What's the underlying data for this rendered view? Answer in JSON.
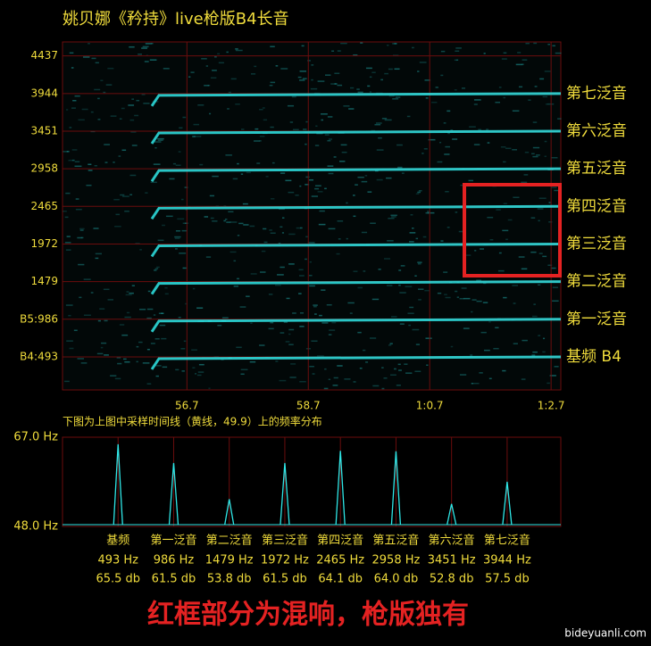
{
  "chart_data": [
    {
      "type": "spectrogram",
      "title": "姚贝娜《矜持》live枪版B4长音",
      "xlim": [
        54.65,
        62.86
      ],
      "xticks": [
        56.7,
        58.7,
        {
          "value": 60.7,
          "label": "1:0.7"
        },
        {
          "value": 62.7,
          "label": "1:2.7"
        }
      ],
      "ylim": [
        60,
        4620
      ],
      "yticks": [
        {
          "value": 493,
          "label": "B4:493"
        },
        {
          "value": 986,
          "label": "B5:986"
        },
        1479,
        1972,
        2465,
        2958,
        3451,
        3944,
        4437
      ],
      "series": [
        {
          "name": "第七泛音",
          "value": 3944
        },
        {
          "name": "第六泛音",
          "value": 3451
        },
        {
          "name": "第五泛音",
          "value": 2958
        },
        {
          "name": "第四泛音",
          "value": 2465
        },
        {
          "name": "第三泛音",
          "value": 1972
        },
        {
          "name": "第二泛音",
          "value": 1479
        },
        {
          "name": "第一泛音",
          "value": 986
        },
        {
          "name": "基频 B4",
          "value": 493
        }
      ],
      "color": "#2fe6e6",
      "grid": true,
      "caption": "下图为上图中采样时间线（黄线，49.9）上的频率分布"
    },
    {
      "type": "spectrum",
      "ylim": [
        48,
        67
      ],
      "yticks": [
        {
          "value": 67,
          "label": "67.0 Hz"
        },
        {
          "value": 48,
          "label": "48.0 Hz"
        }
      ],
      "xlim": [
        0,
        4420
      ],
      "categories": [
        "基频",
        "第一泛音",
        "第二泛音",
        "第三泛音",
        "第四泛音",
        "第五泛音",
        "第六泛音",
        "第七泛音"
      ],
      "xticks": [
        {
          "value": 493,
          "label": "493 Hz"
        },
        {
          "value": 986,
          "label": "986 Hz"
        },
        {
          "value": 1479,
          "label": "1479 Hz"
        },
        {
          "value": 1972,
          "label": "1972 Hz"
        },
        {
          "value": 2465,
          "label": "2465 Hz"
        },
        {
          "value": 2958,
          "label": "2958 Hz"
        },
        {
          "value": 3451,
          "label": "3451 Hz"
        },
        {
          "value": 3944,
          "label": "3944 Hz"
        }
      ],
      "values": [
        65.5,
        61.5,
        53.8,
        61.5,
        64.1,
        64.0,
        52.8,
        57.5
      ],
      "value_labels": [
        "65.5 db",
        "61.5 db",
        "53.8 db",
        "61.5 db",
        "64.1 db",
        "64.0 db",
        "52.8 db",
        "57.5 db"
      ],
      "color": "#2fe6e6",
      "grid": true
    }
  ],
  "banner": "红框部分为混响，枪版独有",
  "watermark": "bideyuanli.com"
}
